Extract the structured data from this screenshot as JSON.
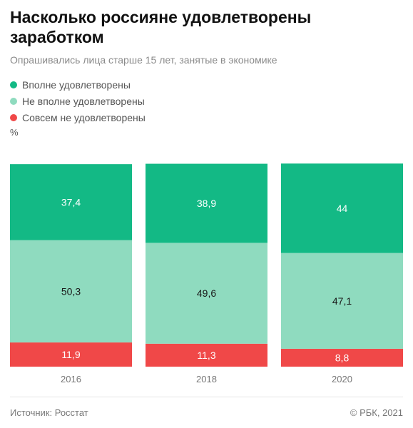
{
  "title": "Насколько россияне удовлетворены заработком",
  "subtitle": "Опрашивались лица старше 15 лет, занятые в экономике",
  "unit": "%",
  "source": "Источник: Росстат",
  "copyright": "© РБК, 2021",
  "chart_data": {
    "type": "bar",
    "stacked": true,
    "categories": [
      "2016",
      "2018",
      "2020"
    ],
    "series": [
      {
        "name": "Совсем не удовлетворены",
        "color": "#f04848",
        "text_color": "#ffffff",
        "values": [
          11.9,
          11.3,
          8.8
        ],
        "labels": [
          "11,9",
          "11,3",
          "8,8"
        ]
      },
      {
        "name": "Не вполне удовлетворены",
        "color": "#8fdbbf",
        "text_color": "#1a1a1a",
        "values": [
          50.3,
          49.6,
          47.1
        ],
        "labels": [
          "50,3",
          "49,6",
          "47,1"
        ]
      },
      {
        "name": "Вполне удовлетворены",
        "color": "#13b985",
        "text_color": "#ffffff",
        "values": [
          37.4,
          38.9,
          44
        ],
        "labels": [
          "37,4",
          "38,9",
          "44"
        ]
      }
    ],
    "legend_order": [
      {
        "name": "Вполне удовлетворены",
        "color": "#13b985"
      },
      {
        "name": "Не вполне удовлетворены",
        "color": "#8fdbbf"
      },
      {
        "name": "Совсем не удовлетворены",
        "color": "#f04848"
      }
    ],
    "ylim": [
      0,
      100
    ],
    "grid": false,
    "legend_position": "top-left"
  }
}
